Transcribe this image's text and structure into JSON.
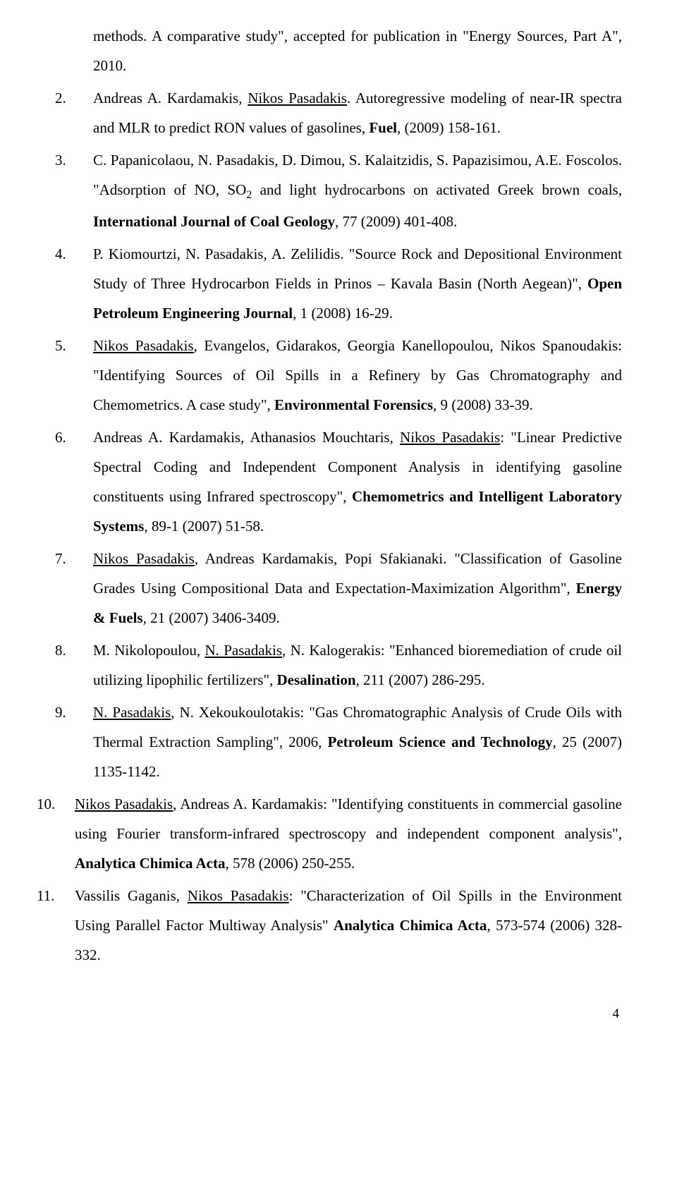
{
  "page": {
    "number": "4"
  },
  "refs": {
    "r1_cont": {
      "text_a": "methods. A comparative study\", accepted for publication in \"Energy Sources, Part A\", 2010."
    },
    "r2": {
      "num": "2.",
      "text_a": "Andreas A. Kardamakis, ",
      "u1": "Nikos Pasadakis",
      "text_b": ". Autoregressive modeling of near-IR spectra and MLR to predict RON values of gasolines, ",
      "b1": "Fuel",
      "text_c": ", (2009) 158-161."
    },
    "r3": {
      "num": "3.",
      "text_a": "C. Papanicolaou, N. Pasadakis, D. Dimou, S. Kalaitzidis, S. Papazisimou, A.E. Foscolos. \"Adsorption of NO, SO",
      "sub1": "2",
      "text_b": " and light hydrocarbons on activated Greek brown coals, ",
      "b1": "International Journal of Coal Geology",
      "text_c": ", 77 (2009) 401-408."
    },
    "r4": {
      "num": "4.",
      "text_a": "P. Kiomourtzi, N. Pasadakis, A. Zelilidis. \"Source Rock and Depositional Environment Study of Three Hydrocarbon Fields in Prinos – Kavala Basin (North Aegean)\", ",
      "b1": "Open Petroleum Engineering Journal",
      "text_b": ", 1 (2008) 16-29."
    },
    "r5": {
      "num": "5.",
      "u1": "Nikos Pasadakis",
      "text_a": ", Evangelos, Gidarakos, Georgia Kanellopoulou, Nikos Spanoudakis: \"Identifying Sources of Oil Spills in a Refinery by Gas Chromatography and Chemometrics. A case study\", ",
      "b1": "Environmental Forensics",
      "text_b": ", 9 (2008) 33-39."
    },
    "r6": {
      "num": "6.",
      "text_a": "Andreas A. Kardamakis, Athanasios Mouchtaris, ",
      "u1": "Nikos Pasadakis",
      "text_b": ": \"Linear Predictive Spectral Coding and Independent Component Analysis in identifying gasoline constituents using Infrared spectroscopy\", ",
      "b1": "Chemometrics and Intelligent Laboratory Systems",
      "text_c": ", 89-1 (2007) 51-58."
    },
    "r7": {
      "num": "7.",
      "u1": "Nikos Pasadakis",
      "text_a": ", Andreas Kardamakis, Popi Sfakianaki. \"Classification of Gasoline Grades Using Compositional Data and Expectation-Maximization Algorithm\", ",
      "b1": "Energy & Fuels",
      "text_b": ", 21 (2007) 3406-3409."
    },
    "r8": {
      "num": "8.",
      "text_a": "M. Nikolopoulou, ",
      "u1": "N. Pasadakis",
      "text_b": ", N. Kalogerakis: \"Enhanced bioremediation of crude oil utilizing lipophilic fertilizers\", ",
      "b1": "Desalination",
      "text_c": ", 211 (2007) 286-295."
    },
    "r9": {
      "num": "9.",
      "u1": "N. Pasadakis",
      "text_a": ", N. Xekoukoulotakis: \"Gas Chromatographic Analysis of Crude Oils with Thermal Extraction Sampling\", 2006, ",
      "b1": "Petroleum Science and Technology",
      "text_b": ", 25 (2007) 1135-1142."
    },
    "r10": {
      "num": "10.",
      "u1": "Nikos Pasadakis",
      "text_a": ", Andreas A. Kardamakis: \"Identifying constituents in commercial gasoline using Fourier transform-infrared spectroscopy and independent component analysis\", ",
      "b1": "Analytica Chimica Acta",
      "text_b": ", 578 (2006) 250-255."
    },
    "r11": {
      "num": "11.",
      "text_a": "Vassilis Gaganis, ",
      "u1": "Nikos Pasadakis",
      "text_b": ": \"Characterization of Oil Spills in the Environment Using Parallel Factor Multiway Analysis\" ",
      "b1": "Analytica Chimica Acta",
      "text_c": ", 573-574 (2006) 328-332."
    }
  }
}
